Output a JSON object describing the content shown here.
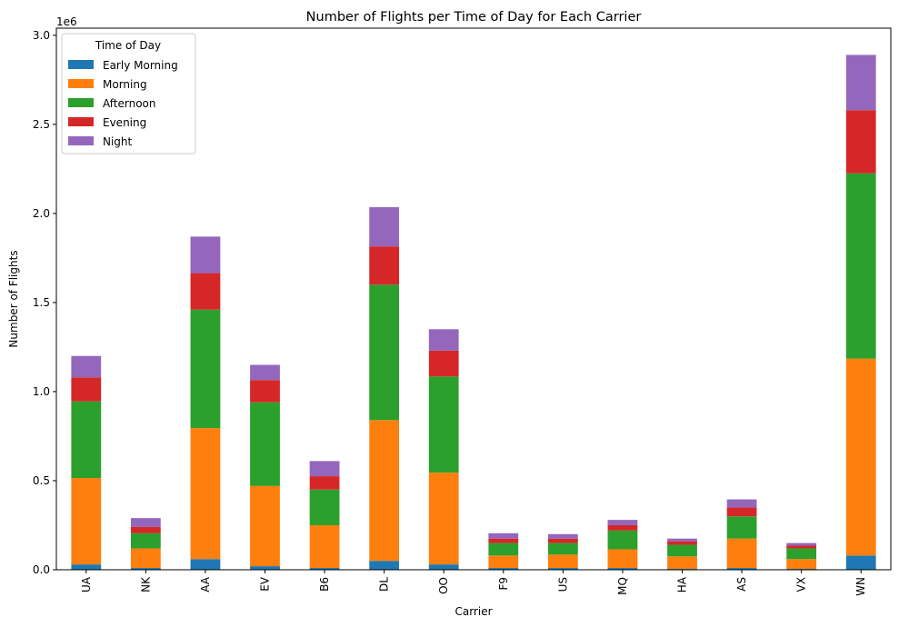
{
  "chart_data": {
    "type": "bar",
    "stacked": true,
    "title": "Number of Flights per Time of Day for Each Carrier",
    "xlabel": "Carrier",
    "ylabel": "Number of Flights",
    "y_offset_label": "1e6",
    "ylim": [
      0,
      3.04
    ],
    "y_ticks": [
      0.0,
      0.5,
      1.0,
      1.5,
      2.0,
      2.5,
      3.0
    ],
    "y_tick_labels": [
      "0.0",
      "0.5",
      "1.0",
      "1.5",
      "2.0",
      "2.5",
      "3.0"
    ],
    "grid": false,
    "legend_title": "Time of Day",
    "legend_position": "top-left",
    "categories": [
      "UA",
      "NK",
      "AA",
      "EV",
      "B6",
      "DL",
      "OO",
      "F9",
      "US",
      "MQ",
      "HA",
      "AS",
      "VX",
      "WN"
    ],
    "series": [
      {
        "name": "Early Morning",
        "color": "#1f77b4",
        "values": [
          0.03,
          0.01,
          0.06,
          0.02,
          0.01,
          0.05,
          0.03,
          0.01,
          0.01,
          0.01,
          0.005,
          0.01,
          0.005,
          0.08
        ]
      },
      {
        "name": "Morning",
        "color": "#ff7f0e",
        "values": [
          0.485,
          0.11,
          0.735,
          0.45,
          0.24,
          0.79,
          0.515,
          0.07,
          0.075,
          0.105,
          0.07,
          0.165,
          0.055,
          1.105
        ]
      },
      {
        "name": "Afternoon",
        "color": "#2ca02c",
        "values": [
          0.43,
          0.085,
          0.665,
          0.47,
          0.2,
          0.76,
          0.54,
          0.07,
          0.065,
          0.105,
          0.065,
          0.125,
          0.06,
          1.04
        ]
      },
      {
        "name": "Evening",
        "color": "#d62728",
        "values": [
          0.135,
          0.035,
          0.205,
          0.125,
          0.075,
          0.215,
          0.145,
          0.025,
          0.025,
          0.03,
          0.02,
          0.05,
          0.015,
          0.355
        ]
      },
      {
        "name": "Night",
        "color": "#9467bd",
        "values": [
          0.12,
          0.05,
          0.205,
          0.085,
          0.085,
          0.22,
          0.12,
          0.03,
          0.025,
          0.03,
          0.015,
          0.045,
          0.015,
          0.31
        ]
      }
    ]
  }
}
